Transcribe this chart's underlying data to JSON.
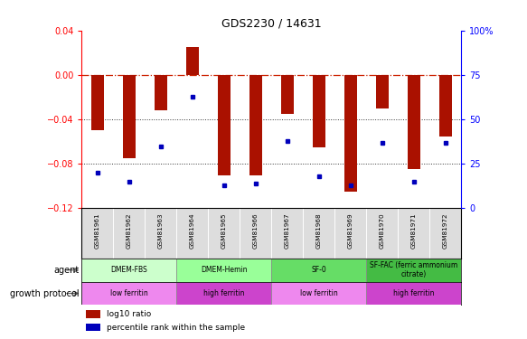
{
  "title": "GDS2230 / 14631",
  "samples": [
    "GSM81961",
    "GSM81962",
    "GSM81963",
    "GSM81964",
    "GSM81965",
    "GSM81966",
    "GSM81967",
    "GSM81968",
    "GSM81969",
    "GSM81970",
    "GSM81971",
    "GSM81972"
  ],
  "log10_ratio": [
    -0.05,
    -0.075,
    -0.032,
    0.025,
    -0.09,
    -0.09,
    -0.035,
    -0.065,
    -0.105,
    -0.03,
    -0.085,
    -0.055
  ],
  "percentile_rank": [
    20,
    15,
    35,
    63,
    13,
    14,
    38,
    18,
    13,
    37,
    15,
    37
  ],
  "ylim_left": [
    -0.12,
    0.04
  ],
  "ylim_right": [
    0,
    100
  ],
  "yticks_left": [
    -0.12,
    -0.08,
    -0.04,
    0.0,
    0.04
  ],
  "yticks_right": [
    0,
    25,
    50,
    75,
    100
  ],
  "agent_groups": [
    {
      "label": "DMEM-FBS",
      "start": 0,
      "end": 3,
      "color": "#ccffcc"
    },
    {
      "label": "DMEM-Hemin",
      "start": 3,
      "end": 6,
      "color": "#99ff99"
    },
    {
      "label": "SF-0",
      "start": 6,
      "end": 9,
      "color": "#66dd66"
    },
    {
      "label": "SF-FAC (ferric ammonium\ncitrate)",
      "start": 9,
      "end": 12,
      "color": "#44bb44"
    }
  ],
  "growth_groups": [
    {
      "label": "low ferritin",
      "start": 0,
      "end": 3,
      "color": "#ee88ee"
    },
    {
      "label": "high ferritin",
      "start": 3,
      "end": 6,
      "color": "#cc44cc"
    },
    {
      "label": "low ferritin",
      "start": 6,
      "end": 9,
      "color": "#ee88ee"
    },
    {
      "label": "high ferritin",
      "start": 9,
      "end": 12,
      "color": "#cc44cc"
    }
  ],
  "bar_color": "#aa1100",
  "dot_color": "#0000bb",
  "dashed_line_color": "#cc2200",
  "dotted_line_color": "#333333",
  "background_color": "#ffffff",
  "sample_row_color": "#dddddd",
  "legend_bar_label": "log10 ratio",
  "legend_dot_label": "percentile rank within the sample",
  "bar_width": 0.4
}
